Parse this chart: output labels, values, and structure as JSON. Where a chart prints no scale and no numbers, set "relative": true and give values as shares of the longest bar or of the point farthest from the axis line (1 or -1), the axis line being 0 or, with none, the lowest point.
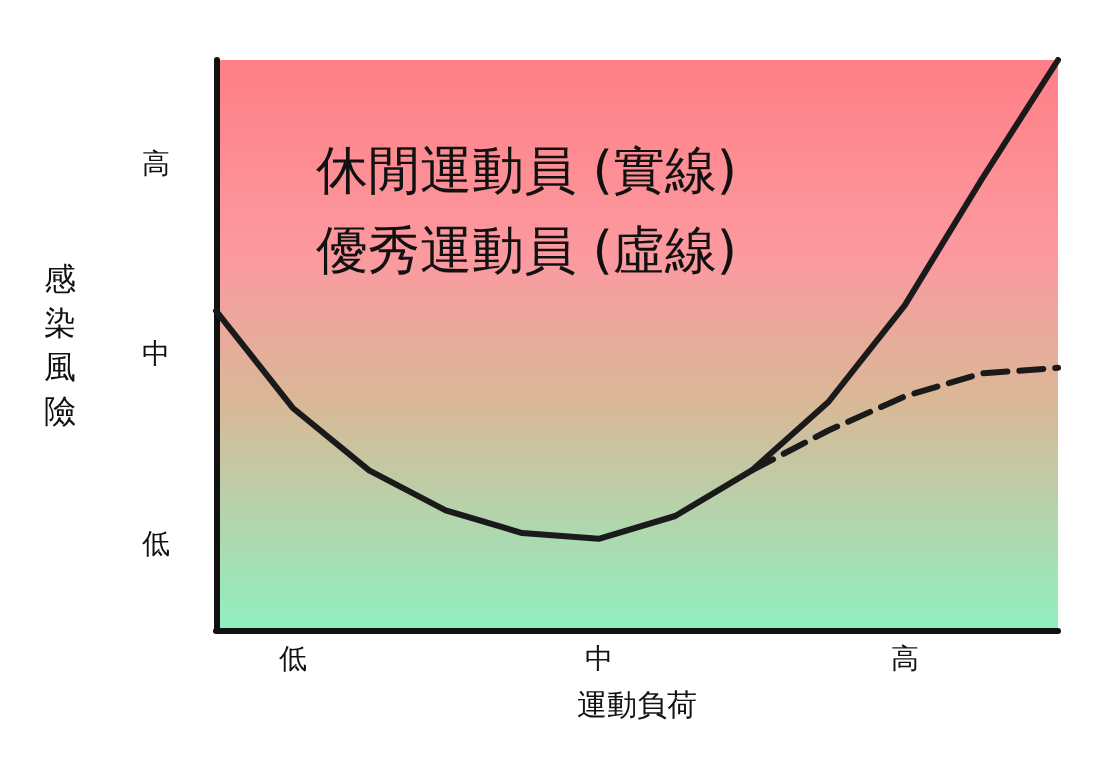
{
  "chart_data": {
    "type": "line",
    "relative": true,
    "xlabel": "運動負荷",
    "ylabel": "感染風險",
    "annotations": [
      "休閒運動員 (實線)",
      "優秀運動員 (虛線)",
      "高",
      "中",
      "低"
    ],
    "categories": [
      null,
      "低",
      null,
      null,
      null,
      "中",
      null,
      null,
      null,
      "高",
      null,
      null
    ],
    "grid": false,
    "marker": "none",
    "series": [
      {
        "color": "#1a1a1a",
        "line_style": "solid",
        "values": [
          0.56,
          0.39,
          0.28,
          0.21,
          0.17,
          0.16,
          0.2,
          0.28,
          0.4,
          0.57,
          0.79,
          1.0
        ]
      },
      {
        "color": "#1a1a1a",
        "line_style": "dashed",
        "values": [
          null,
          null,
          null,
          null,
          null,
          null,
          null,
          0.28,
          0.35,
          0.41,
          0.45,
          0.46
        ]
      }
    ]
  }
}
